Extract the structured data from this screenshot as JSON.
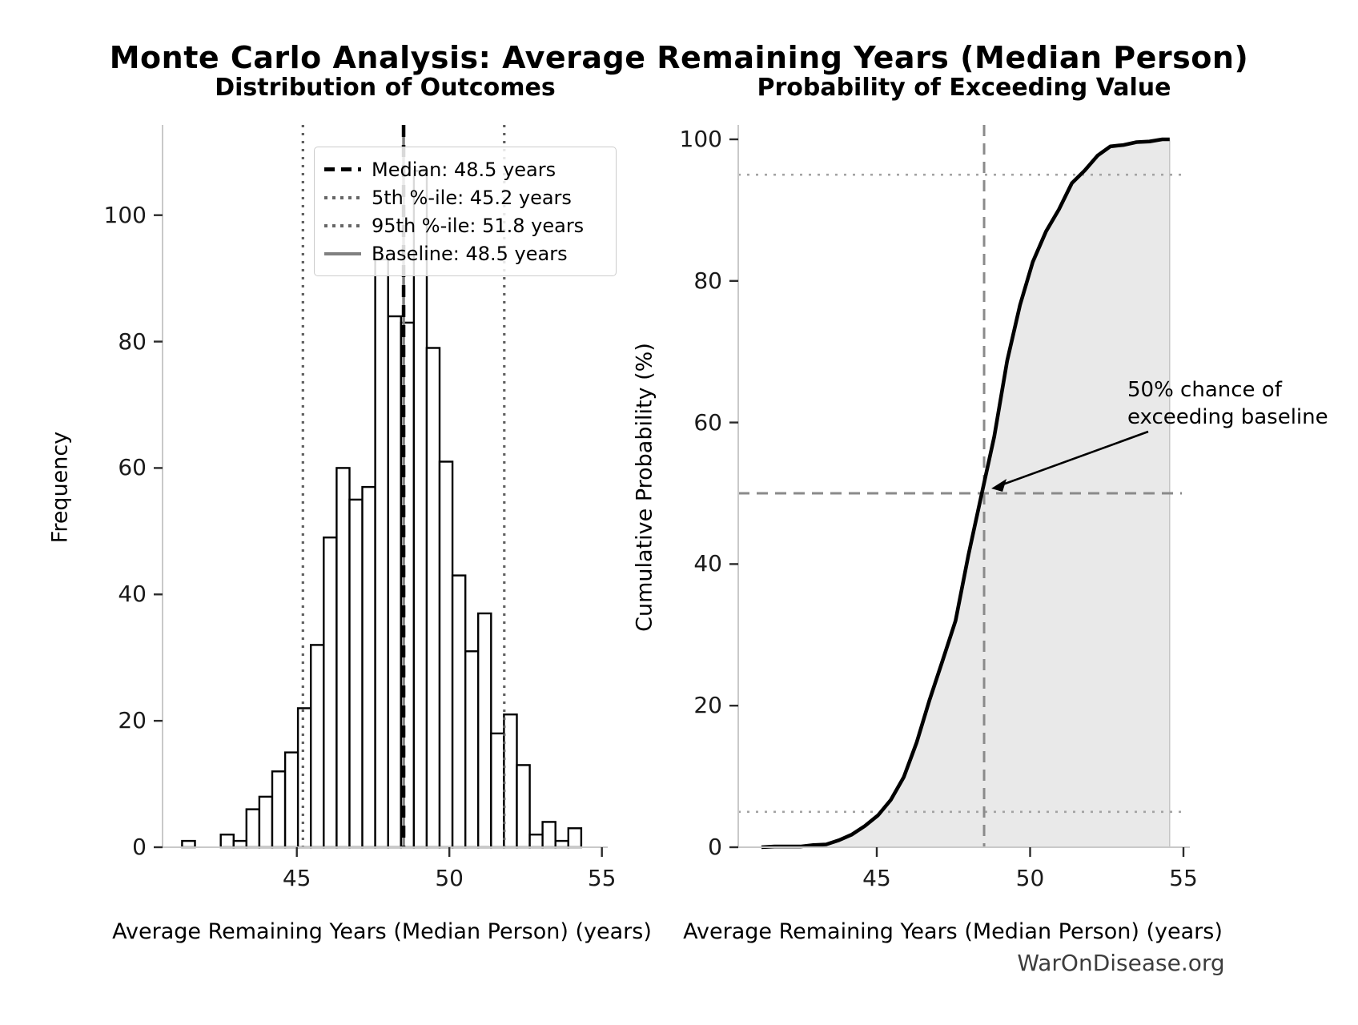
{
  "page": {
    "suptitle": "Monte Carlo Analysis: Average Remaining Years (Median Person)",
    "footer": "WarOnDisease.org"
  },
  "left_chart": {
    "title": "Distribution of Outcomes",
    "xlabel": "Average Remaining Years (Median Person) (years)",
    "ylabel": "Frequency",
    "xticks": [
      45,
      50,
      55
    ],
    "yticks": [
      0,
      20,
      40,
      60,
      80,
      100
    ],
    "legend": [
      {
        "label": "Median: 48.5 years",
        "style": "dashed-black"
      },
      {
        "label": "5th %-ile: 45.2 years",
        "style": "dotted-gray"
      },
      {
        "label": "95th %-ile: 51.8 years",
        "style": "dotted-gray"
      },
      {
        "label": "Baseline: 48.5 years",
        "style": "solid-gray"
      }
    ]
  },
  "right_chart": {
    "title": "Probability of Exceeding Value",
    "xlabel": "Average Remaining Years (Median Person) (years)",
    "ylabel": "Cumulative Probability (%)",
    "xticks": [
      45,
      50,
      55
    ],
    "yticks": [
      0,
      20,
      40,
      60,
      80,
      100
    ],
    "annotation": {
      "line1": "50% chance of",
      "line2": "exceeding baseline"
    }
  },
  "chart_data": [
    {
      "type": "bar",
      "subtype": "histogram",
      "title": "Distribution of Outcomes",
      "xlabel": "Average Remaining Years (Median Person) (years)",
      "ylabel": "Frequency",
      "n_samples": 1000,
      "bin_start": 41.24,
      "bin_width": 0.422,
      "counts": [
        1,
        0,
        0,
        2,
        1,
        6,
        8,
        12,
        15,
        22,
        32,
        49,
        60,
        55,
        57,
        93,
        84,
        83,
        107,
        79,
        61,
        43,
        31,
        37,
        18,
        21,
        13,
        2,
        4,
        1,
        3
      ],
      "median": 48.5,
      "percentile_5": 45.2,
      "percentile_95": 51.8,
      "baseline": 48.5,
      "xlim": [
        40.6,
        55.2
      ],
      "ylim": [
        0,
        114
      ],
      "bar_fill": "#ffffff",
      "bar_edge": "#000000"
    },
    {
      "type": "line",
      "subtype": "cumulative-probability",
      "title": "Probability of Exceeding Value",
      "xlabel": "Average Remaining Years (Median Person) (years)",
      "ylabel": "Cumulative Probability (%)",
      "x": [
        41.24,
        41.66,
        42.08,
        42.51,
        42.93,
        43.35,
        43.77,
        44.19,
        44.61,
        45.04,
        45.46,
        45.88,
        46.3,
        46.72,
        47.14,
        47.57,
        47.99,
        48.41,
        48.83,
        49.25,
        49.67,
        50.09,
        50.52,
        50.94,
        51.36,
        51.78,
        52.2,
        52.62,
        53.04,
        53.47,
        53.89,
        54.31,
        54.55
      ],
      "y": [
        0,
        0.1,
        0.1,
        0.1,
        0.3,
        0.4,
        1.0,
        1.8,
        3.0,
        4.5,
        6.7,
        9.9,
        14.8,
        20.8,
        26.3,
        32.0,
        41.3,
        49.7,
        58.0,
        68.7,
        76.6,
        82.7,
        87.0,
        90.1,
        93.8,
        95.6,
        97.7,
        99.0,
        99.2,
        99.6,
        99.7,
        100,
        100
      ],
      "h_dotted_lines": [
        5,
        95
      ],
      "h_dashed_line": 50,
      "v_dashed_line": 48.5,
      "xlim": [
        40.6,
        55.2
      ],
      "ylim": [
        0,
        102
      ],
      "line_color": "#000000",
      "fill_color": "#e9e9e9",
      "ref_gray": "#8a8a8a",
      "dotted_gray": "#a3a3a3"
    }
  ]
}
